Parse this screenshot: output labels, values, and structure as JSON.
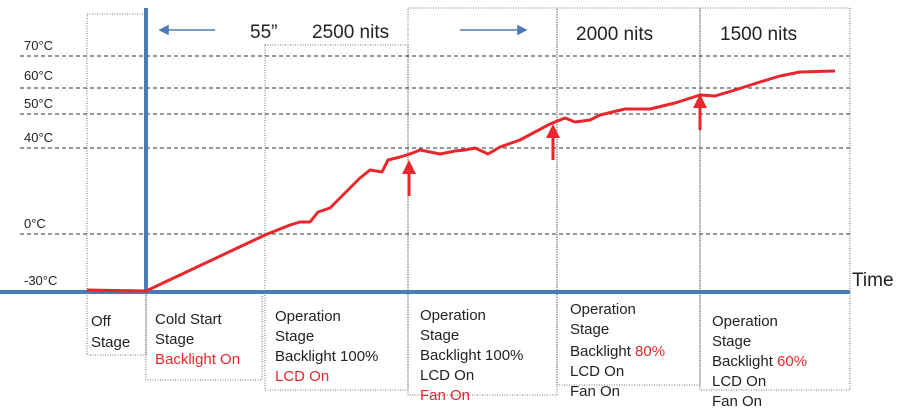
{
  "y_labels": [
    "70°C",
    "60°C",
    "50°C",
    "40°C",
    "0°C",
    "-30°C"
  ],
  "axis_label": "Time",
  "top_labels": [
    "55”",
    "2500 nits",
    "2000 nits",
    "1500 nits"
  ],
  "stages": [
    {
      "lines": [
        [
          "Off"
        ],
        [
          "Stage"
        ]
      ]
    },
    {
      "lines": [
        [
          "Cold Start"
        ],
        [
          "Stage"
        ],
        [
          "Backlight On"
        ]
      ]
    },
    {
      "lines": [
        [
          "Operation"
        ],
        [
          "Stage"
        ],
        [
          "Backlight 100%"
        ],
        [
          "LCD On"
        ]
      ]
    },
    {
      "lines": [
        [
          "Operation"
        ],
        [
          "Stage"
        ],
        [
          "Backlight 100%"
        ],
        [
          "LCD On"
        ],
        [
          "Fan  On"
        ]
      ]
    },
    {
      "lines": [
        [
          "Operation"
        ],
        [
          "Stage"
        ],
        [
          "Backlight ",
          "80%"
        ],
        [
          "LCD On"
        ],
        [
          "Fan  On"
        ]
      ]
    },
    {
      "lines": [
        [
          "Operation"
        ],
        [
          "Stage"
        ],
        [
          "Backlight ",
          "60%"
        ],
        [
          "LCD On"
        ],
        [
          "Fan  On"
        ]
      ]
    }
  ]
}
